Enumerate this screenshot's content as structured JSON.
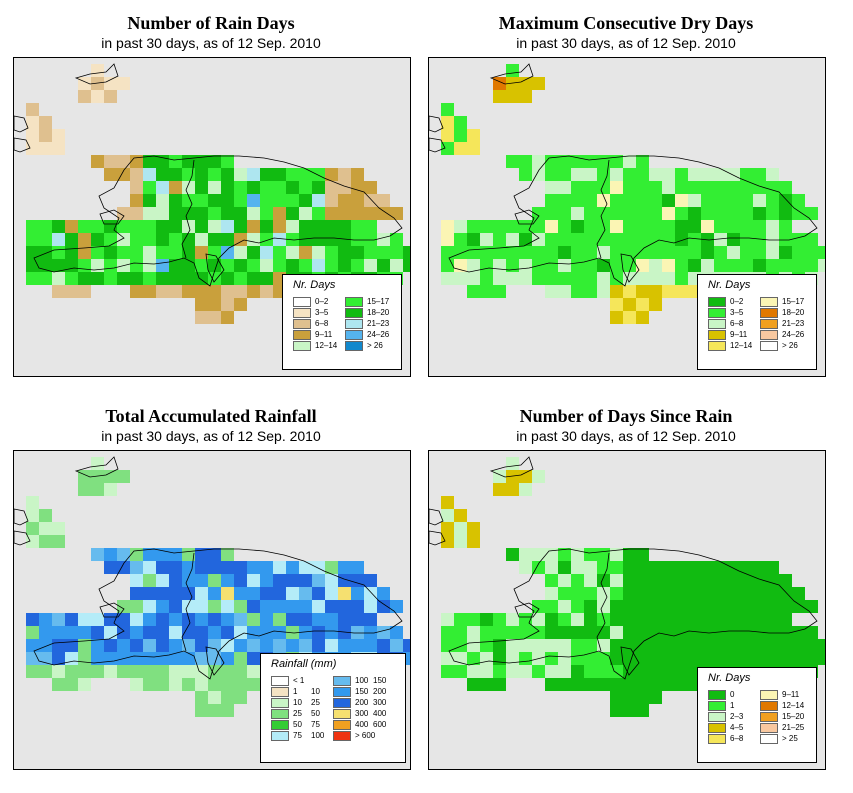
{
  "panels": [
    {
      "title": "Number of Rain Days",
      "subtitle": "in past 30 days, as of  12 Sep. 2010",
      "legend": {
        "title": "Nr. Days",
        "col1": [
          {
            "label": "0–2",
            "color": "#ffffff"
          },
          {
            "label": "3–5",
            "color": "#f5e3c3"
          },
          {
            "label": "6–8",
            "color": "#dfc08f"
          },
          {
            "label": "9–11",
            "color": "#c9a03c"
          },
          {
            "label": "12–14",
            "color": "#c9f5c6"
          }
        ],
        "col2": [
          {
            "label": "15–17",
            "color": "#33ee33"
          },
          {
            "label": "18–20",
            "color": "#11bb11"
          },
          {
            "label": "21–23",
            "color": "#aee6f0"
          },
          {
            "label": "24–26",
            "color": "#55b4ee"
          },
          {
            "label": "> 26",
            "color": "#1188cc"
          }
        ]
      }
    },
    {
      "title": "Maximum Consecutive Dry Days",
      "subtitle": "in past 30 days, as of  12 Sep. 2010",
      "legend": {
        "title": "Nr. Days",
        "col1": [
          {
            "label": "0–2",
            "color": "#11bb11"
          },
          {
            "label": "3–5",
            "color": "#33ee33"
          },
          {
            "label": "6–8",
            "color": "#c9f5c6"
          },
          {
            "label": "9–11",
            "color": "#d8c200"
          },
          {
            "label": "12–14",
            "color": "#f5e65a"
          }
        ],
        "col2": [
          {
            "label": "15–17",
            "color": "#fbf5b4"
          },
          {
            "label": "18–20",
            "color": "#e07800"
          },
          {
            "label": "21–23",
            "color": "#f0a020"
          },
          {
            "label": "24–26",
            "color": "#f8c8a0"
          },
          {
            "label": "> 26",
            "color": "#ffffff"
          }
        ]
      }
    },
    {
      "title": "Total Accumulated Rainfall",
      "subtitle": "in past 30 days, as of  12 Sep. 2010",
      "legend": {
        "title": "Rainfall (mm)",
        "col1": [
          {
            "a": "< 1",
            "b": "",
            "color": "#ffffff"
          },
          {
            "a": "1",
            "b": "10",
            "color": "#f5e3c3"
          },
          {
            "a": "10",
            "b": "25",
            "color": "#c9f5c6"
          },
          {
            "a": "25",
            "b": "50",
            "color": "#80e080"
          },
          {
            "a": "50",
            "b": "75",
            "color": "#33cc33"
          },
          {
            "a": "75",
            "b": "100",
            "color": "#b4ecf8"
          }
        ],
        "col2": [
          {
            "a": "100",
            "b": "150",
            "color": "#66bbee"
          },
          {
            "a": "150",
            "b": "200",
            "color": "#3399ee"
          },
          {
            "a": "200",
            "b": "300",
            "color": "#2266dd"
          },
          {
            "a": "300",
            "b": "400",
            "color": "#f5e070"
          },
          {
            "a": "400",
            "b": "600",
            "color": "#f0a020"
          },
          {
            "a": "> 600",
            "b": "",
            "color": "#ee3311"
          }
        ]
      }
    },
    {
      "title": "Number of Days Since Rain",
      "subtitle": "in past 30 days, as of  12 Sep. 2010",
      "legend": {
        "title": "Nr. Days",
        "col1": [
          {
            "label": "0",
            "color": "#11bb11"
          },
          {
            "label": "1",
            "color": "#33ee33"
          },
          {
            "label": "2–3",
            "color": "#c9f5c6"
          },
          {
            "label": "4–5",
            "color": "#d8c200"
          },
          {
            "label": "6–8",
            "color": "#f5e65a"
          }
        ],
        "col2": [
          {
            "label": "9–11",
            "color": "#fbf5b4"
          },
          {
            "label": "12–14",
            "color": "#e07800"
          },
          {
            "label": "15–20",
            "color": "#f0a020"
          },
          {
            "label": "21–25",
            "color": "#f8c8a0"
          },
          {
            "label": "> 25",
            "color": "#ffffff"
          }
        ]
      }
    }
  ]
}
